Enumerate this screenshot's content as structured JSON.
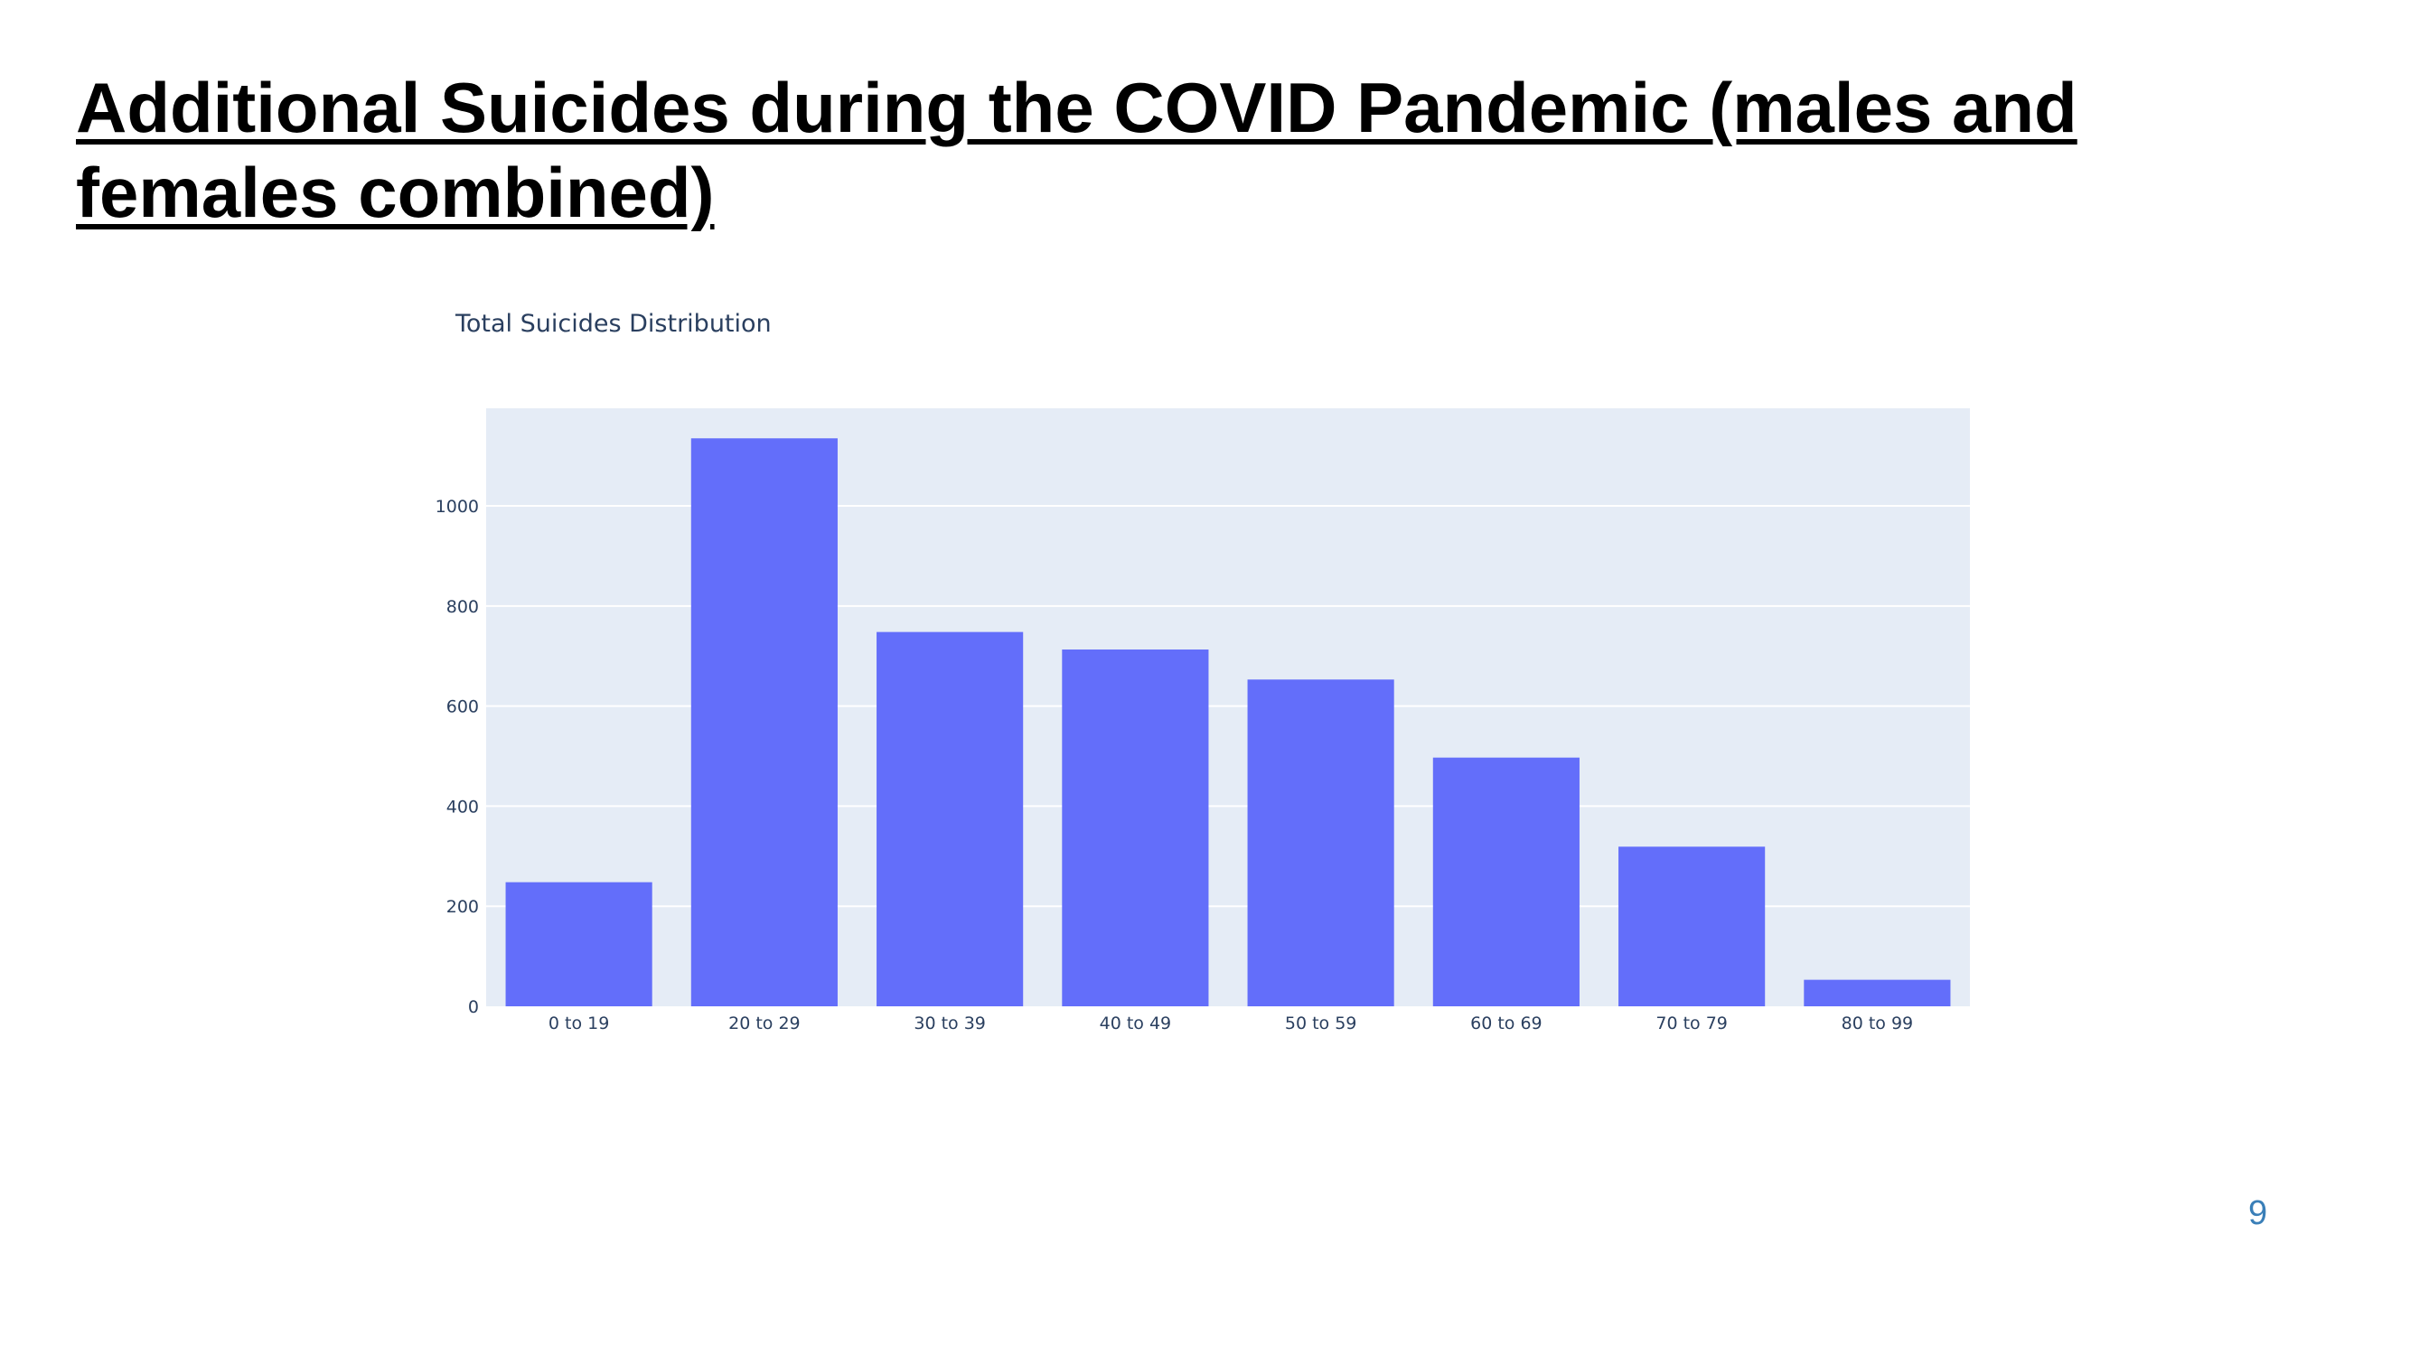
{
  "slide": {
    "title": "Additional Suicides during the COVID Pandemic (males and females combined)",
    "page_number": "9"
  },
  "colors": {
    "bar": "#636efa",
    "plot_background": "#e5ecf6",
    "gridline": "#ffffff",
    "tick_text": "#2a3f5f",
    "page_number": "#3a7fb8"
  },
  "chart_data": {
    "type": "bar",
    "title": "Total Suicides Distribution",
    "xlabel": "",
    "ylabel": "",
    "categories": [
      "0 to 19",
      "20 to 29",
      "30 to 39",
      "40 to 49",
      "50 to 59",
      "60 to 69",
      "70 to 79",
      "80 to 99"
    ],
    "values": [
      248,
      1135,
      748,
      713,
      653,
      497,
      319,
      53
    ],
    "ylim": [
      0,
      1195
    ],
    "yticks": [
      0,
      200,
      400,
      600,
      800,
      1000
    ],
    "grid": true,
    "legend": "none"
  }
}
